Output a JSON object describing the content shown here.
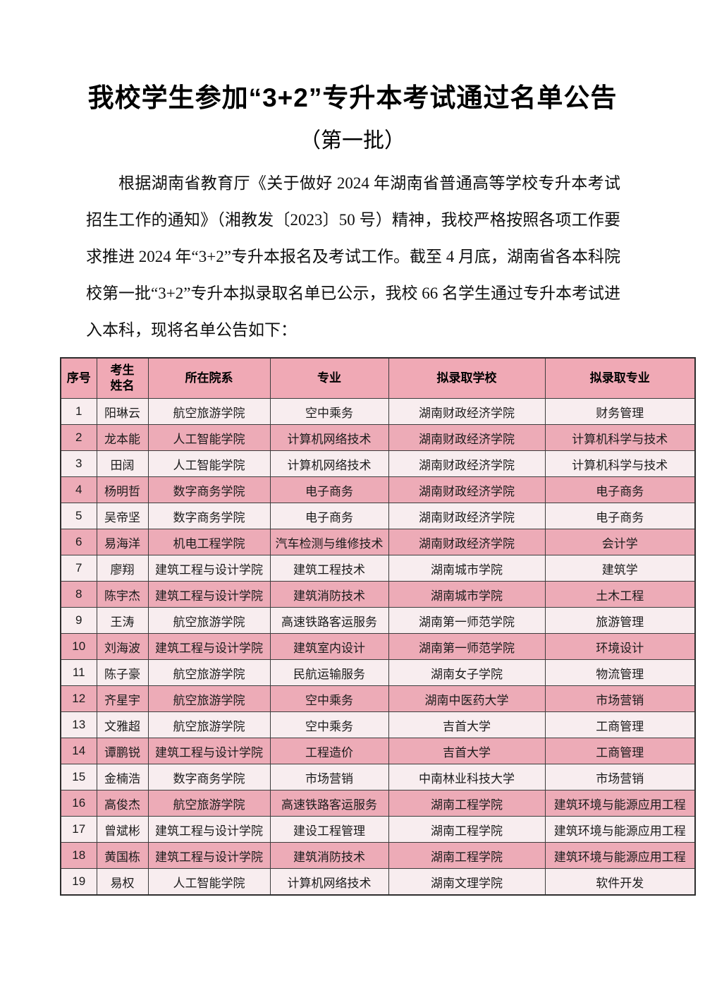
{
  "doc": {
    "title": "我校学生参加“3+2”专升本考试通过名单公告",
    "subtitle": "（第一批）",
    "paragraph": "根据湖南省教育厅《关于做好 2024 年湖南省普通高等学校专升本考试招生工作的通知》（湘教发〔2023〕50 号）精神，我校严格按照各项工作要求推进 2024 年“3+2”专升本报名及考试工作。截至 4 月底，湖南省各本科院校第一批“3+2”专升本拟录取名单已公示，我校 66 名学生通过专升本考试进入本科，现将名单公告如下："
  },
  "table": {
    "headers": [
      "序号",
      "考生\n姓名",
      "所在院系",
      "专业",
      "拟录取学校",
      "拟录取专业"
    ],
    "rows": [
      [
        "1",
        "阳琳云",
        "航空旅游学院",
        "空中乘务",
        "湖南财政经济学院",
        "财务管理"
      ],
      [
        "2",
        "龙本能",
        "人工智能学院",
        "计算机网络技术",
        "湖南财政经济学院",
        "计算机科学与技术"
      ],
      [
        "3",
        "田阔",
        "人工智能学院",
        "计算机网络技术",
        "湖南财政经济学院",
        "计算机科学与技术"
      ],
      [
        "4",
        "杨明哲",
        "数字商务学院",
        "电子商务",
        "湖南财政经济学院",
        "电子商务"
      ],
      [
        "5",
        "吴帝坚",
        "数字商务学院",
        "电子商务",
        "湖南财政经济学院",
        "电子商务"
      ],
      [
        "6",
        "易海洋",
        "机电工程学院",
        "汽车检测与维修技术",
        "湖南财政经济学院",
        "会计学"
      ],
      [
        "7",
        "廖翔",
        "建筑工程与设计学院",
        "建筑工程技术",
        "湖南城市学院",
        "建筑学"
      ],
      [
        "8",
        "陈宇杰",
        "建筑工程与设计学院",
        "建筑消防技术",
        "湖南城市学院",
        "土木工程"
      ],
      [
        "9",
        "王涛",
        "航空旅游学院",
        "高速铁路客运服务",
        "湖南第一师范学院",
        "旅游管理"
      ],
      [
        "10",
        "刘海波",
        "建筑工程与设计学院",
        "建筑室内设计",
        "湖南第一师范学院",
        "环境设计"
      ],
      [
        "11",
        "陈子豪",
        "航空旅游学院",
        "民航运输服务",
        "湖南女子学院",
        "物流管理"
      ],
      [
        "12",
        "齐星宇",
        "航空旅游学院",
        "空中乘务",
        "湖南中医药大学",
        "市场营销"
      ],
      [
        "13",
        "文雅超",
        "航空旅游学院",
        "空中乘务",
        "吉首大学",
        "工商管理"
      ],
      [
        "14",
        "谭鹏锐",
        "建筑工程与设计学院",
        "工程造价",
        "吉首大学",
        "工商管理"
      ],
      [
        "15",
        "金楠浩",
        "数字商务学院",
        "市场营销",
        "中南林业科技大学",
        "市场营销"
      ],
      [
        "16",
        "高俊杰",
        "航空旅游学院",
        "高速铁路客运服务",
        "湖南工程学院",
        "建筑环境与能源应用工程"
      ],
      [
        "17",
        "曾斌彬",
        "建筑工程与设计学院",
        "建设工程管理",
        "湖南工程学院",
        "建筑环境与能源应用工程"
      ],
      [
        "18",
        "黄国栋",
        "建筑工程与设计学院",
        "建筑消防技术",
        "湖南工程学院",
        "建筑环境与能源应用工程"
      ],
      [
        "19",
        "易权",
        "人工智能学院",
        "计算机网络技术",
        "湖南文理学院",
        "软件开发"
      ]
    ]
  },
  "colors": {
    "header_bg": "#f0a9b5",
    "row_dark": "#edabb7",
    "row_light": "#f8edef",
    "border": "#3d3d3d"
  }
}
